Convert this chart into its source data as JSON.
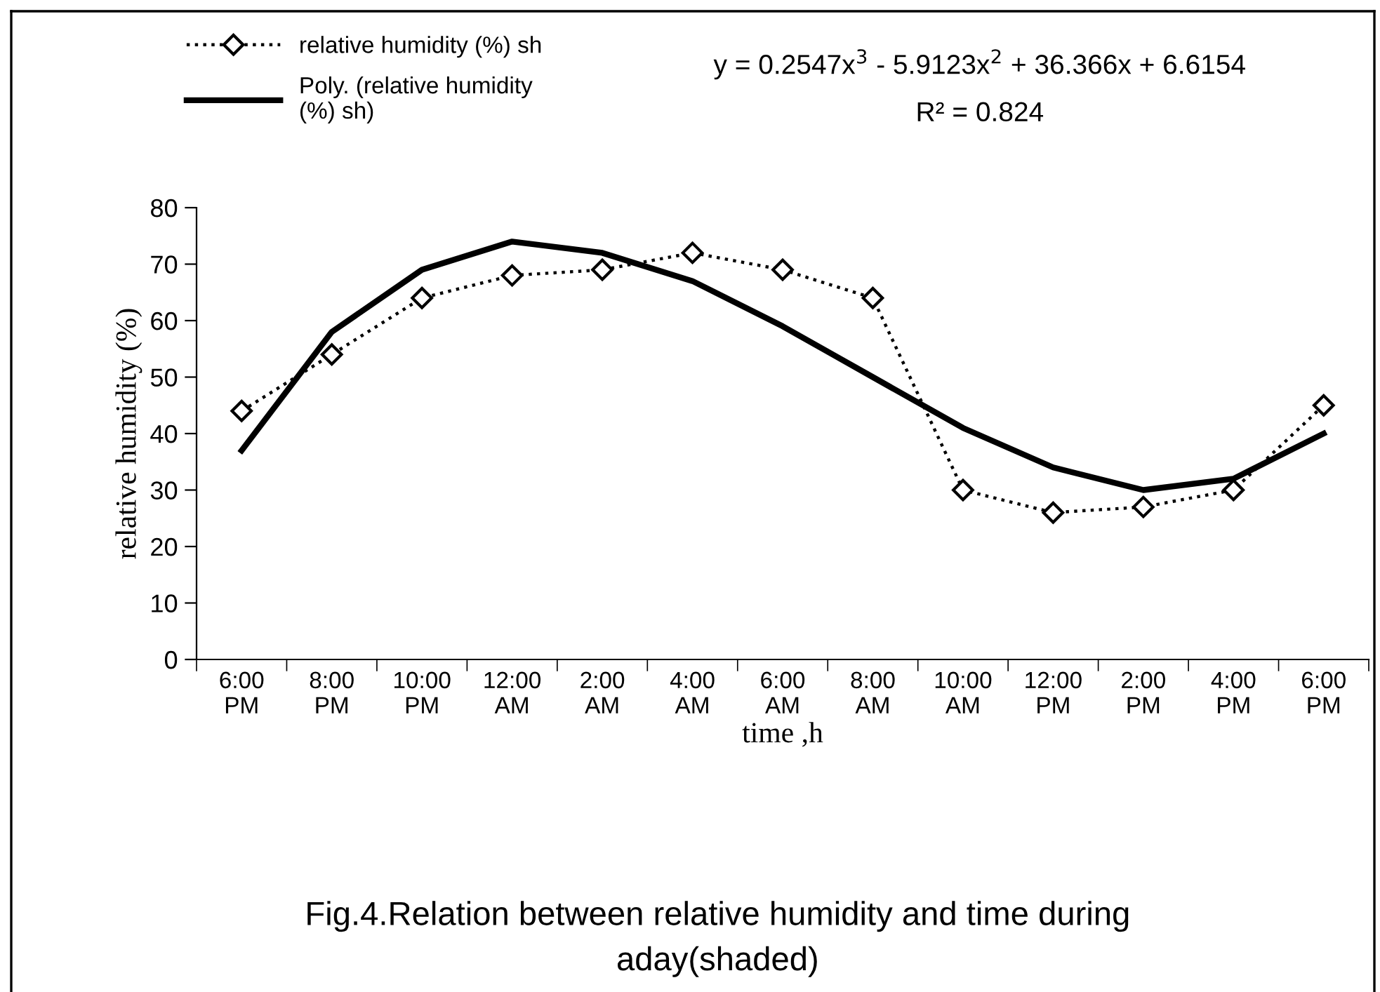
{
  "chart_data": {
    "type": "line",
    "categories": [
      "6:00 PM",
      "8:00 PM",
      "10:00 PM",
      "12:00 AM",
      "2:00 AM",
      "4:00 AM",
      "6:00 AM",
      "8:00 AM",
      "10:00 AM",
      "12:00 PM",
      "2:00 PM",
      "4:00 PM",
      "6:00 PM"
    ],
    "series": [
      {
        "name": "relative humidity (%) sh",
        "color": "#000000",
        "values": [
          44,
          54,
          64,
          68,
          69,
          72,
          69,
          64,
          30,
          26,
          27,
          30,
          45
        ],
        "marker": "diamond",
        "line_style": "dotted"
      },
      {
        "name": "Poly. (relative humidity\n(%) sh)",
        "color": "#000000",
        "values": [
          37,
          58,
          69,
          74,
          72,
          67,
          59,
          50,
          41,
          34,
          30,
          32,
          40
        ],
        "marker": "none",
        "line_style": "solid"
      }
    ],
    "xlabel": "time ,h",
    "ylabel": "relative humidity (%)",
    "ylim": [
      0,
      80
    ],
    "yticks": [
      0,
      10,
      20,
      30,
      40,
      50,
      60,
      70,
      80
    ],
    "grid": false,
    "legend": "top left",
    "annotations": [
      "y = 0.2547x$^{3}$ - 5.9123x$^{2}$ + 36.366x + 6.6154",
      "R² = 0.824",
      "Fig.4.Relation between relative humidity and time during\naday(shaded)"
    ]
  }
}
